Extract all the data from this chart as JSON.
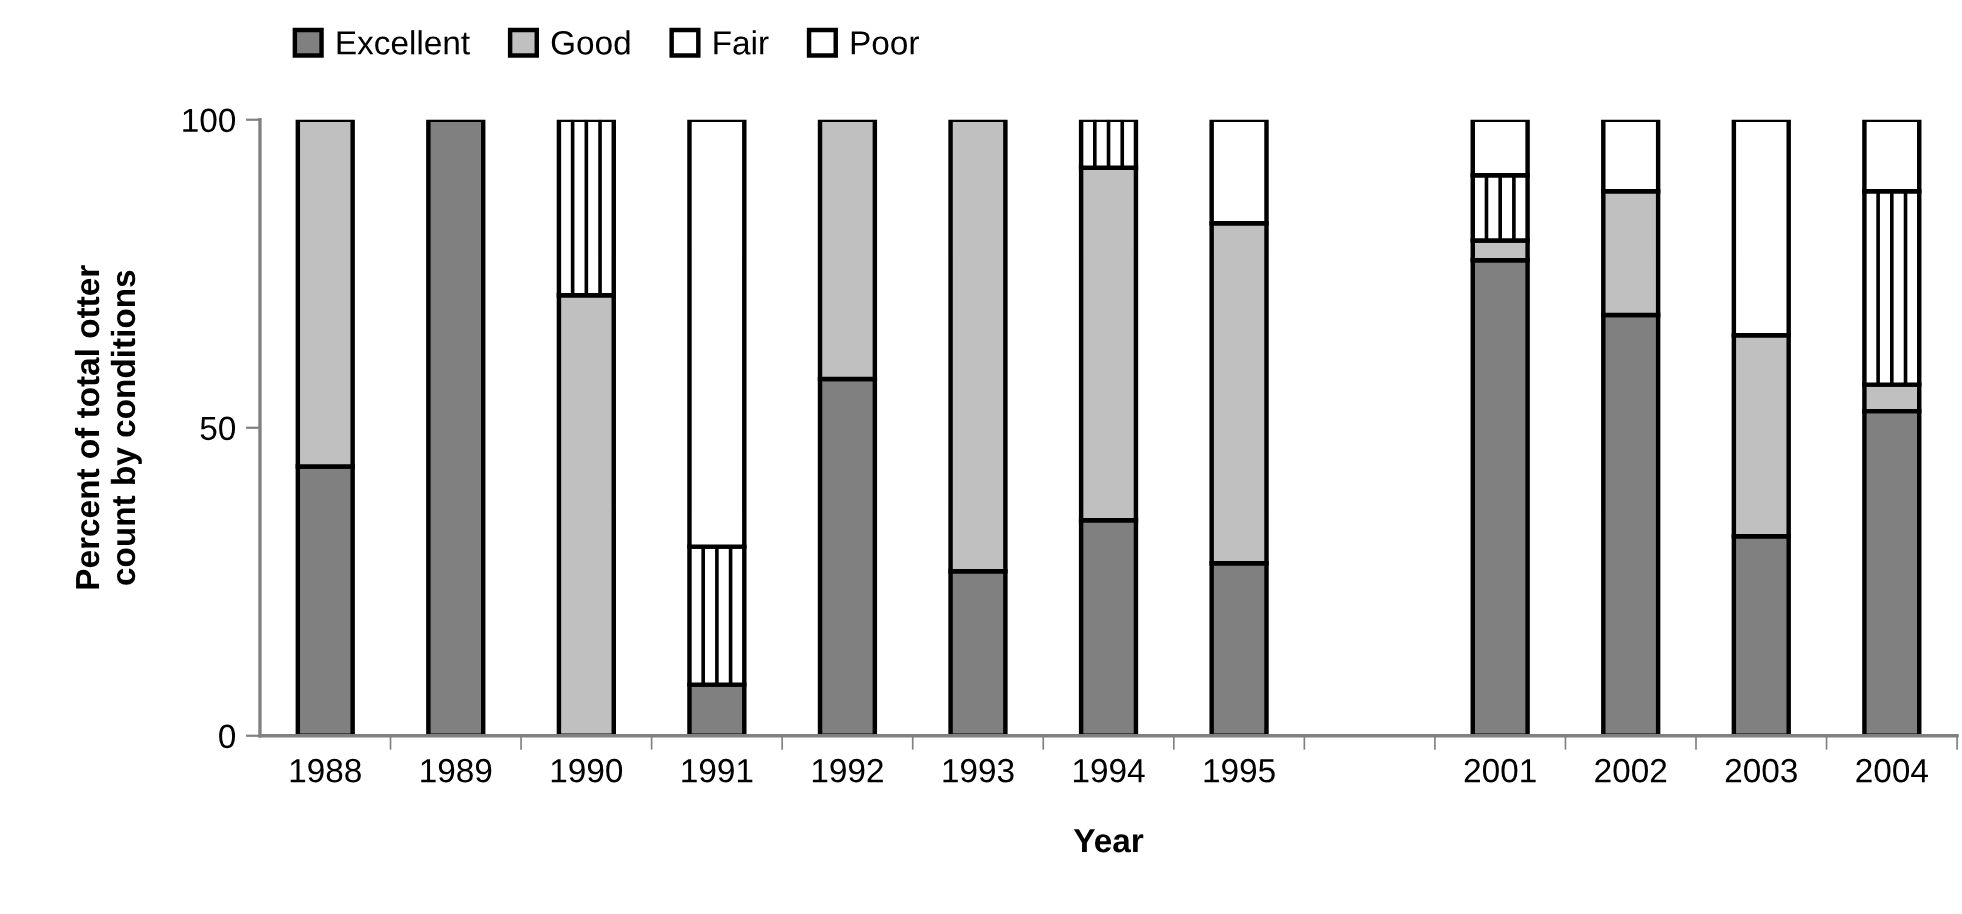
{
  "chart_data": {
    "type": "bar",
    "stacked": true,
    "xlabel": "Year",
    "ylabel": "Percent of total otter count by conditions",
    "categories": [
      "1988",
      "1989",
      "1990",
      "1991",
      "1992",
      "1993",
      "1994",
      "1995",
      null,
      "2001",
      "2002",
      "2003",
      "2004"
    ],
    "series": [
      {
        "name": "Excellent",
        "color": "#808080",
        "values": [
          43.7,
          100,
          null,
          8.3,
          57.9,
          26.7,
          35.0,
          28.0,
          null,
          77.2,
          68.3,
          32.4,
          52.7
        ]
      },
      {
        "name": "Good",
        "color": "#c0c0c0",
        "values": [
          56.3,
          null,
          71.5,
          null,
          42.1,
          73.3,
          57.2,
          55.2,
          null,
          3.2,
          20.1,
          32.6,
          4.3
        ]
      },
      {
        "name": "Fair",
        "color": "#ffffff",
        "values": [
          null,
          null,
          28.5,
          22.4,
          null,
          null,
          7.8,
          null,
          null,
          10.6,
          null,
          null,
          31.4
        ]
      },
      {
        "name": "Poor",
        "color": "#ffffff",
        "values": [
          null,
          null,
          null,
          69.3,
          null,
          null,
          null,
          16.8,
          null,
          9.0,
          11.6,
          35.0,
          11.6
        ]
      }
    ],
    "ylim": [
      0,
      100
    ],
    "yticks": [
      0,
      50,
      100
    ],
    "grid": false,
    "legend": "top left"
  }
}
